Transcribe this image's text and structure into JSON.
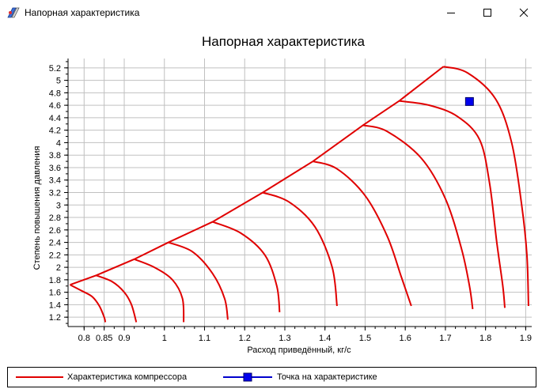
{
  "window": {
    "title": "Напорная характеристика",
    "icon": "app-logo-icon",
    "controls": [
      "minimize-icon",
      "maximize-icon",
      "close-icon"
    ]
  },
  "chart_data": {
    "type": "line",
    "title": "Напорная характеристика",
    "xlabel": "Расход приведённый, кг/с",
    "ylabel": "Степень повышения давления",
    "xlim": [
      0.76,
      1.915
    ],
    "ylim": [
      1.05,
      5.35
    ],
    "x_ticks": [
      "0.8",
      "0.85",
      "0.9",
      "1",
      "1.1",
      "1.2",
      "1.3",
      "1.4",
      "1.5",
      "1.6",
      "1.7",
      "1.8",
      "1.9"
    ],
    "x_tick_values": [
      0.8,
      0.85,
      0.9,
      1.0,
      1.1,
      1.2,
      1.3,
      1.4,
      1.5,
      1.6,
      1.7,
      1.8,
      1.9
    ],
    "y_ticks": [
      "1.2",
      "1.4",
      "1.6",
      "1.8",
      "2",
      "2.2",
      "2.4",
      "2.6",
      "2.8",
      "3",
      "3.2",
      "3.4",
      "3.6",
      "3.8",
      "4",
      "4.2",
      "4.4",
      "4.6",
      "4.8",
      "5",
      "5.2"
    ],
    "y_tick_values": [
      1.2,
      1.4,
      1.6,
      1.8,
      2.0,
      2.2,
      2.4,
      2.6,
      2.8,
      3.0,
      3.2,
      3.4,
      3.6,
      3.8,
      4.0,
      4.2,
      4.4,
      4.6,
      4.8,
      5.0,
      5.2
    ],
    "grid": true,
    "legend_position": "bottom",
    "colors": {
      "series": "#e00000",
      "point": "#0000cc",
      "grid": "#c0c0c0"
    },
    "series": [
      {
        "name": "Характеристика компрессора",
        "style": "line",
        "surge_line": [
          [
            0.765,
            1.72
          ],
          [
            0.83,
            1.87
          ],
          [
            0.925,
            2.13
          ],
          [
            1.01,
            2.4
          ],
          [
            1.12,
            2.73
          ],
          [
            1.245,
            3.2
          ],
          [
            1.37,
            3.7
          ],
          [
            1.495,
            4.28
          ],
          [
            1.585,
            4.67
          ],
          [
            1.695,
            5.22
          ]
        ],
        "curves": [
          [
            [
              0.765,
              1.72
            ],
            [
              0.795,
              1.62
            ],
            [
              0.82,
              1.53
            ],
            [
              0.838,
              1.38
            ],
            [
              0.85,
              1.2
            ],
            [
              0.853,
              1.12
            ]
          ],
          [
            [
              0.83,
              1.87
            ],
            [
              0.87,
              1.77
            ],
            [
              0.9,
              1.6
            ],
            [
              0.918,
              1.4
            ],
            [
              0.93,
              1.12
            ]
          ],
          [
            [
              0.925,
              2.13
            ],
            [
              0.975,
              2.0
            ],
            [
              1.02,
              1.8
            ],
            [
              1.045,
              1.5
            ],
            [
              1.048,
              1.12
            ]
          ],
          [
            [
              1.01,
              2.4
            ],
            [
              1.07,
              2.25
            ],
            [
              1.12,
              1.9
            ],
            [
              1.15,
              1.5
            ],
            [
              1.158,
              1.16
            ]
          ],
          [
            [
              1.12,
              2.73
            ],
            [
              1.19,
              2.55
            ],
            [
              1.25,
              2.2
            ],
            [
              1.28,
              1.7
            ],
            [
              1.287,
              1.28
            ]
          ],
          [
            [
              1.245,
              3.2
            ],
            [
              1.31,
              3.05
            ],
            [
              1.375,
              2.65
            ],
            [
              1.418,
              2.0
            ],
            [
              1.43,
              1.38
            ]
          ],
          [
            [
              1.37,
              3.7
            ],
            [
              1.43,
              3.58
            ],
            [
              1.5,
              3.15
            ],
            [
              1.555,
              2.5
            ],
            [
              1.59,
              1.85
            ],
            [
              1.615,
              1.38
            ]
          ],
          [
            [
              1.495,
              4.28
            ],
            [
              1.555,
              4.18
            ],
            [
              1.64,
              3.75
            ],
            [
              1.7,
              3.1
            ],
            [
              1.74,
              2.3
            ],
            [
              1.76,
              1.7
            ],
            [
              1.768,
              1.33
            ]
          ],
          [
            [
              1.585,
              4.67
            ],
            [
              1.66,
              4.6
            ],
            [
              1.73,
              4.42
            ],
            [
              1.785,
              4.05
            ],
            [
              1.81,
              3.35
            ],
            [
              1.828,
              2.4
            ],
            [
              1.843,
              1.7
            ],
            [
              1.848,
              1.35
            ]
          ],
          [
            [
              1.695,
              5.22
            ],
            [
              1.755,
              5.12
            ],
            [
              1.825,
              4.7
            ],
            [
              1.865,
              4.0
            ],
            [
              1.89,
              3.0
            ],
            [
              1.903,
              2.2
            ],
            [
              1.907,
              1.38
            ]
          ]
        ]
      },
      {
        "name": "Точка на характеристике",
        "style": "marker",
        "points": [
          [
            1.76,
            4.66
          ]
        ]
      }
    ]
  }
}
